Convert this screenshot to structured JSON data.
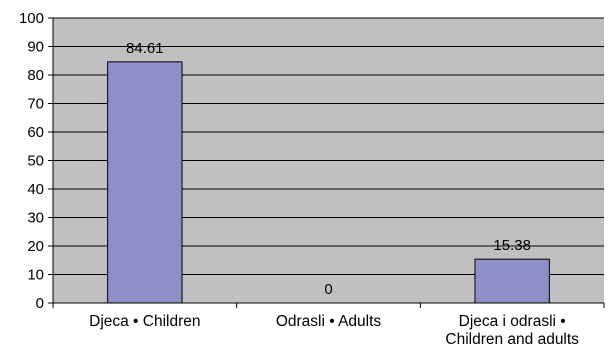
{
  "chart_data": {
    "type": "bar",
    "categories": [
      [
        "Djeca • Children"
      ],
      [
        "Odrasli • Adults"
      ],
      [
        "Djeca i odrasli •",
        "Children and adults"
      ]
    ],
    "values": [
      84.61,
      0,
      15.38
    ],
    "data_labels": [
      "84.61",
      "0",
      "15.38"
    ],
    "title": "",
    "xlabel": "",
    "ylabel": "",
    "ylim": [
      0,
      100
    ],
    "yticks": [
      0,
      10,
      20,
      30,
      40,
      50,
      60,
      70,
      80,
      90,
      100
    ],
    "grid": true,
    "legend": "none",
    "colors": {
      "plot_background": "#c0c0c0",
      "bar_fill": "#8f8fc8",
      "bar_stroke": "#000000",
      "gridline": "#000000",
      "axis": "#000000"
    }
  }
}
